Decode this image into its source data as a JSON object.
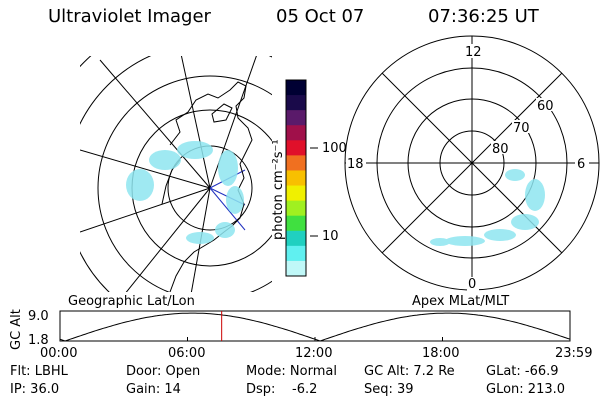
{
  "header": {
    "title": "Ultraviolet Imager",
    "date": "05 Oct 07",
    "time": "07:36:25 UT"
  },
  "colorbar": {
    "unit_label": "photon cm⁻²s⁻¹",
    "ticks": [
      "100",
      "10"
    ],
    "colors": [
      "#000033",
      "#1a0a4a",
      "#5a1a6a",
      "#a0104a",
      "#e0102a",
      "#f07020",
      "#f8c000",
      "#f0f000",
      "#a0f020",
      "#40e040",
      "#20d0c0",
      "#60f0f0",
      "#c0f8f8"
    ]
  },
  "left_map": {
    "label": "Geographic Lat/Lon"
  },
  "right_map": {
    "label": "Apex MLat/MLT",
    "mlt_labels": {
      "top": "12",
      "right": "6",
      "bottom": "0",
      "left": "18"
    },
    "lat_labels": [
      "60",
      "70",
      "80"
    ]
  },
  "alt_plot": {
    "ylabel": "GC Alt",
    "ymax": "9.0",
    "ymin": "1.8",
    "xticks": [
      "00:00",
      "06:00",
      "12:00",
      "18:00",
      "23:59"
    ],
    "current_time_fraction": 0.317
  },
  "info": {
    "flt": "Flt: LBHL",
    "door": "Door: Open",
    "mode": "Mode: Normal",
    "gc_alt": "GC Alt: 7.2 Re",
    "glat": "GLat: -66.9",
    "ip": "IP: 36.0",
    "gain": "Gain: 14",
    "dsp_label": "Dsp:",
    "dsp_value": "-6.2",
    "seq": "Seq: 39",
    "glon": "GLon: 213.0"
  },
  "colors": {
    "marker": "#cc0000",
    "aurora": "#8fe6f0"
  }
}
